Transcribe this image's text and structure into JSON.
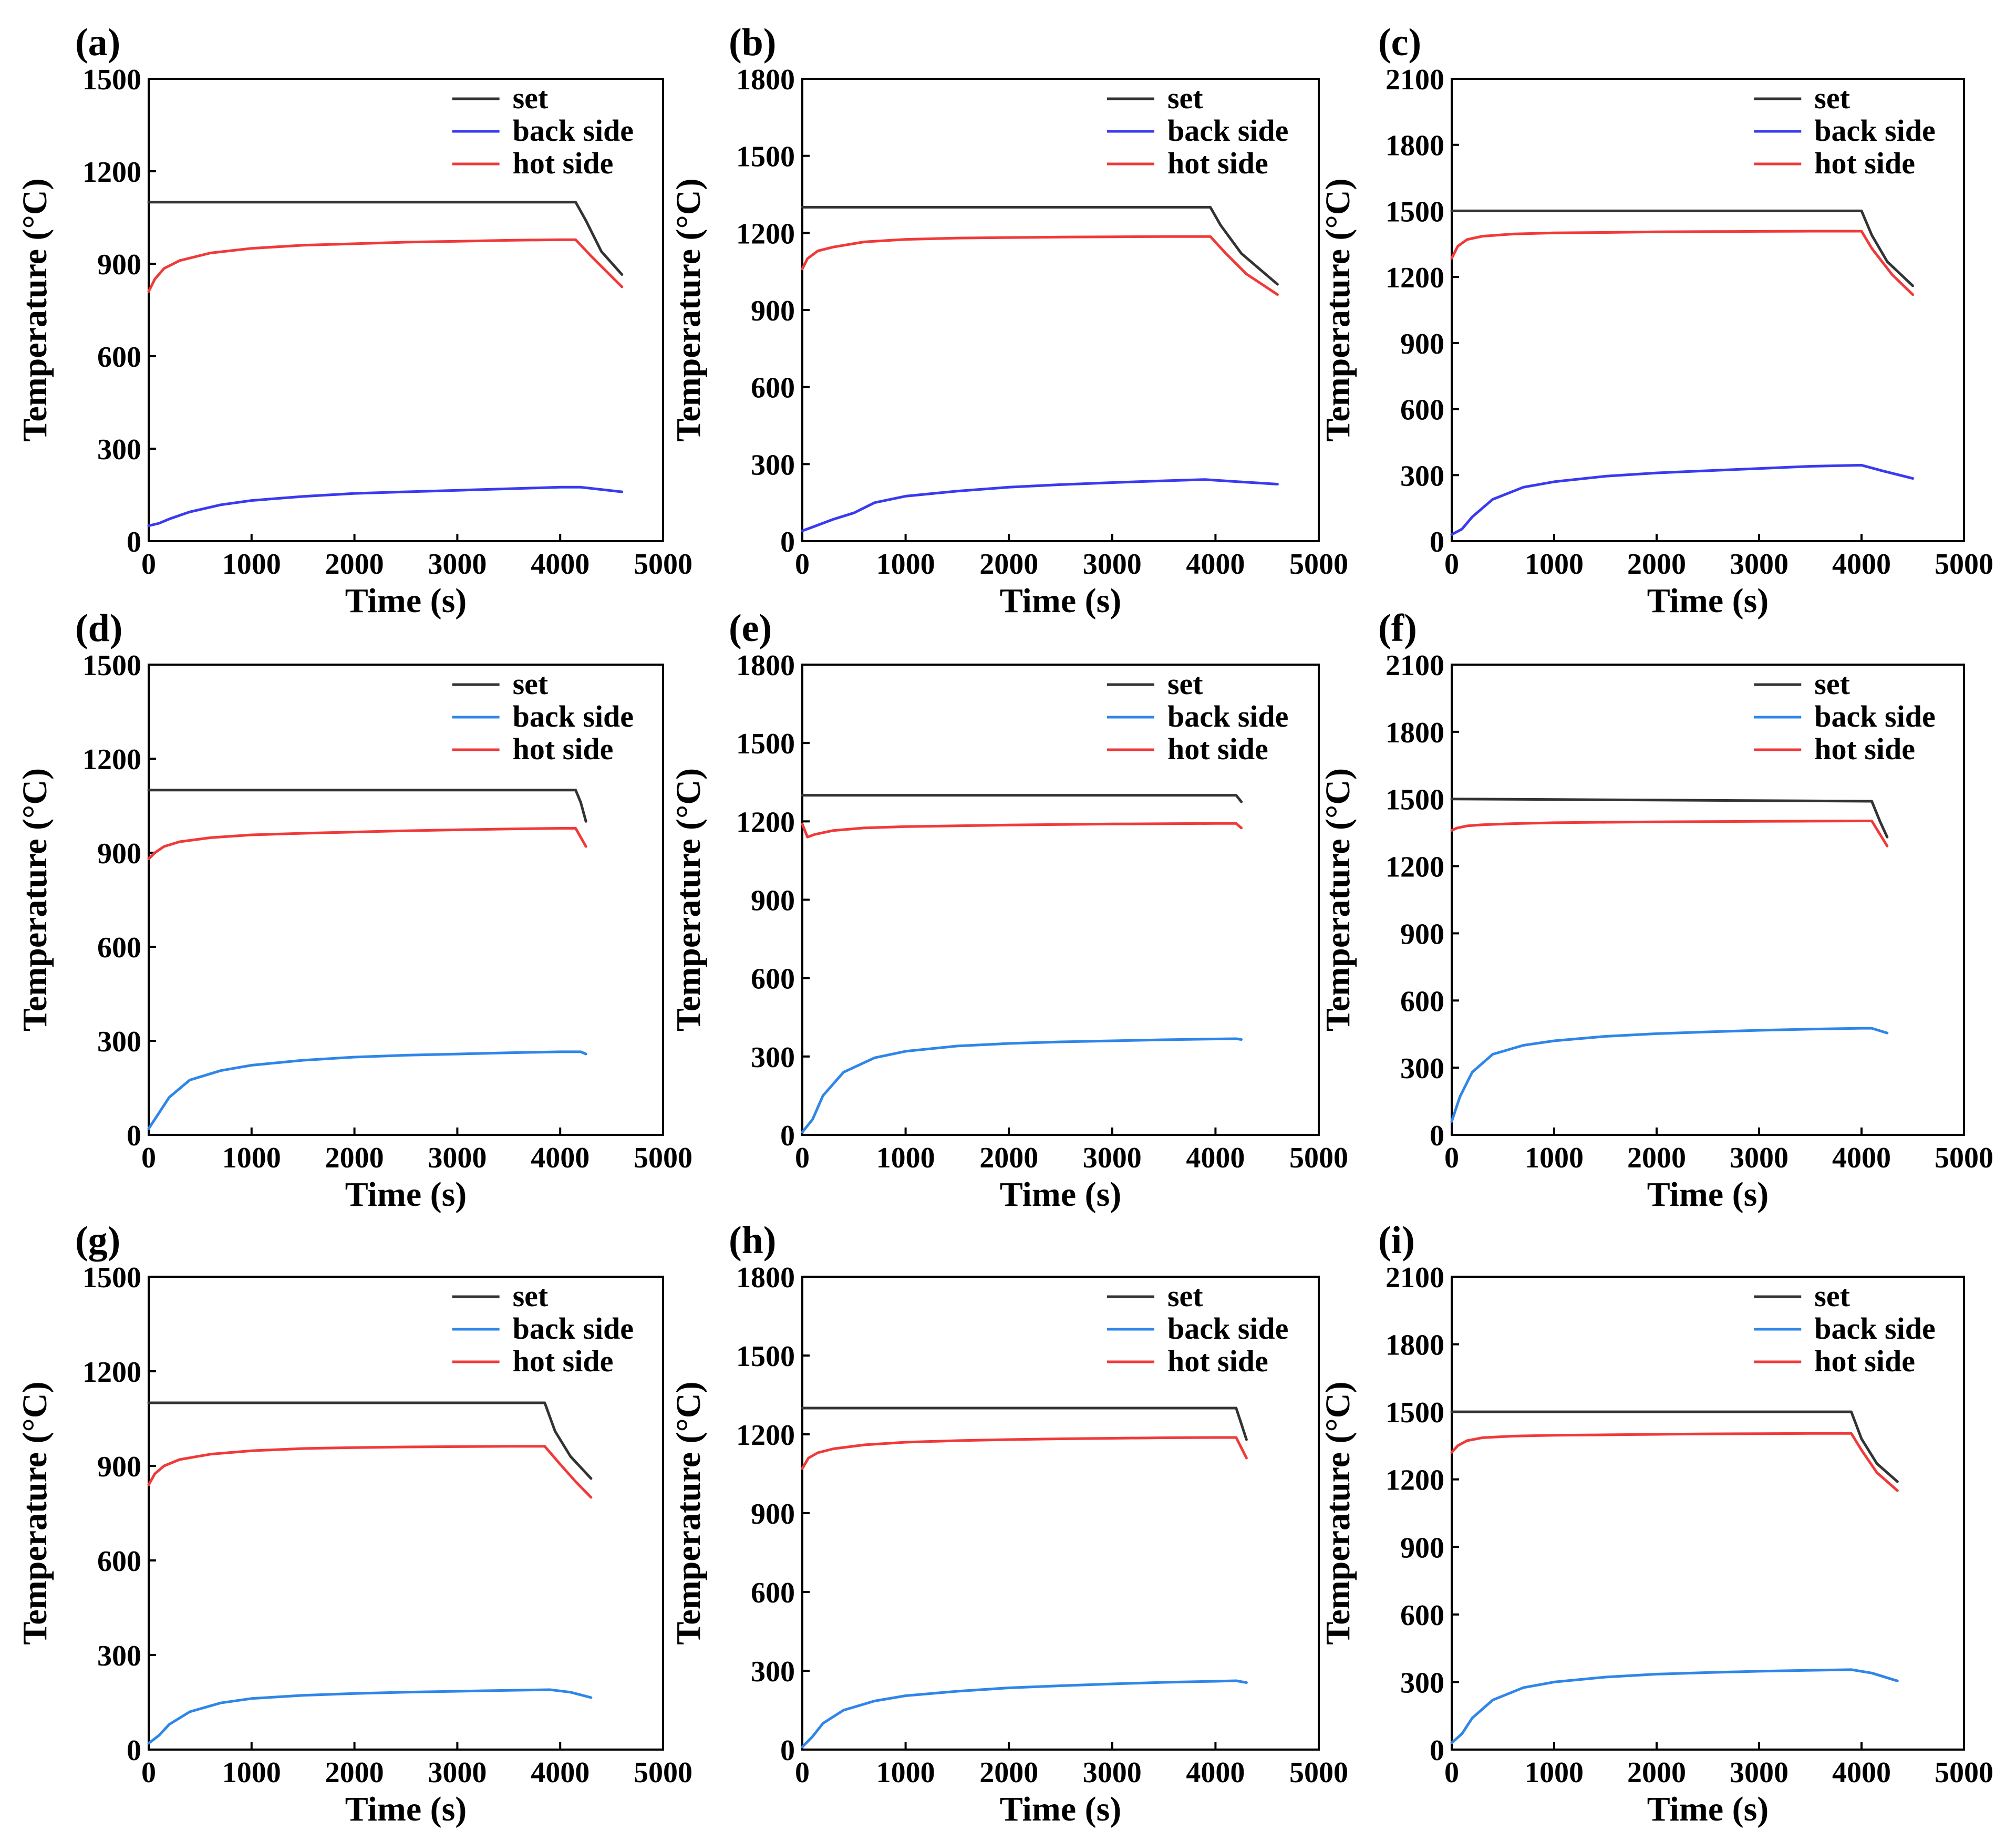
{
  "figure": {
    "xlabel": "Time (s)",
    "ylabel": "Temperature (°C)",
    "legend": [
      "set",
      "back side",
      "hot side"
    ]
  },
  "colors": {
    "set": "#333333",
    "back_purple": "#3a3af0",
    "back_blue": "#2f86e8",
    "hot": "#f03a3a",
    "axis": "#000000"
  },
  "chart_data": [
    {
      "panel": "(a)",
      "type": "line",
      "xlabel": "Time (s)",
      "ylabel": "Temperature (°C)",
      "xlim": [
        0,
        5000
      ],
      "ylim": [
        0,
        1500
      ],
      "xticks": [
        0,
        1000,
        2000,
        3000,
        4000,
        5000
      ],
      "yticks": [
        0,
        300,
        600,
        900,
        1200,
        1500
      ],
      "legend_position": "top-right",
      "back_color_key": "back_purple",
      "series": [
        {
          "name": "set",
          "color_key": "set",
          "x": [
            0,
            4150,
            4250,
            4400,
            4600
          ],
          "y": [
            1100,
            1100,
            1040,
            940,
            865
          ]
        },
        {
          "name": "back side",
          "color_key": "back_purple",
          "x": [
            0,
            100,
            200,
            400,
            700,
            1000,
            1500,
            2000,
            2500,
            3000,
            3500,
            4000,
            4200,
            4600
          ],
          "y": [
            50,
            58,
            72,
            95,
            118,
            132,
            145,
            155,
            160,
            165,
            170,
            175,
            175,
            160
          ]
        },
        {
          "name": "hot side",
          "color_key": "hot",
          "x": [
            0,
            60,
            150,
            300,
            600,
            1000,
            1500,
            2000,
            2500,
            3000,
            3500,
            4000,
            4150,
            4300,
            4600
          ],
          "y": [
            810,
            850,
            885,
            910,
            935,
            950,
            960,
            965,
            970,
            973,
            976,
            978,
            978,
            925,
            825
          ]
        }
      ]
    },
    {
      "panel": "(b)",
      "type": "line",
      "xlabel": "Time (s)",
      "ylabel": "Temperature (°C)",
      "xlim": [
        0,
        5000
      ],
      "ylim": [
        0,
        1800
      ],
      "xticks": [
        0,
        1000,
        2000,
        3000,
        4000,
        5000
      ],
      "yticks": [
        0,
        300,
        600,
        900,
        1200,
        1500,
        1800
      ],
      "legend_position": "top-right",
      "back_color_key": "back_purple",
      "series": [
        {
          "name": "set",
          "color_key": "set",
          "x": [
            0,
            3950,
            4050,
            4250,
            4600
          ],
          "y": [
            1300,
            1300,
            1230,
            1120,
            1000
          ]
        },
        {
          "name": "back side",
          "color_key": "back_purple",
          "x": [
            0,
            100,
            300,
            500,
            700,
            1000,
            1500,
            2000,
            2500,
            3000,
            3500,
            3900,
            4200,
            4600
          ],
          "y": [
            40,
            55,
            85,
            110,
            150,
            175,
            195,
            210,
            220,
            228,
            235,
            240,
            232,
            222
          ]
        },
        {
          "name": "hot side",
          "color_key": "hot",
          "x": [
            0,
            50,
            150,
            300,
            600,
            1000,
            1500,
            2000,
            2500,
            3000,
            3500,
            3950,
            4100,
            4300,
            4600
          ],
          "y": [
            1060,
            1100,
            1130,
            1145,
            1165,
            1175,
            1180,
            1182,
            1184,
            1185,
            1186,
            1186,
            1120,
            1040,
            960
          ]
        }
      ]
    },
    {
      "panel": "(c)",
      "type": "line",
      "xlabel": "Time (s)",
      "ylabel": "Temperature (°C)",
      "xlim": [
        0,
        5000
      ],
      "ylim": [
        0,
        2100
      ],
      "xticks": [
        0,
        1000,
        2000,
        3000,
        4000,
        5000
      ],
      "yticks": [
        0,
        300,
        600,
        900,
        1200,
        1500,
        1800,
        2100
      ],
      "legend_position": "top-right",
      "back_color_key": "back_purple",
      "series": [
        {
          "name": "set",
          "color_key": "set",
          "x": [
            0,
            4000,
            4100,
            4250,
            4500
          ],
          "y": [
            1500,
            1500,
            1390,
            1270,
            1160
          ]
        },
        {
          "name": "back side",
          "color_key": "back_purple",
          "x": [
            0,
            100,
            200,
            400,
            700,
            1000,
            1500,
            2000,
            2500,
            3000,
            3500,
            4000,
            4200,
            4500
          ],
          "y": [
            30,
            55,
            110,
            190,
            245,
            270,
            295,
            310,
            320,
            330,
            340,
            345,
            320,
            285
          ]
        },
        {
          "name": "hot side",
          "color_key": "hot",
          "x": [
            0,
            60,
            150,
            300,
            600,
            1000,
            1500,
            2000,
            2500,
            3000,
            3500,
            4000,
            4100,
            4300,
            4500
          ],
          "y": [
            1285,
            1340,
            1370,
            1385,
            1395,
            1400,
            1402,
            1405,
            1406,
            1407,
            1408,
            1408,
            1330,
            1210,
            1120
          ]
        }
      ]
    },
    {
      "panel": "(d)",
      "type": "line",
      "xlabel": "Time (s)",
      "ylabel": "Temperature (°C)",
      "xlim": [
        0,
        5000
      ],
      "ylim": [
        0,
        1500
      ],
      "xticks": [
        0,
        1000,
        2000,
        3000,
        4000,
        5000
      ],
      "yticks": [
        0,
        300,
        600,
        900,
        1200,
        1500
      ],
      "legend_position": "top-right",
      "back_color_key": "back_blue",
      "series": [
        {
          "name": "set",
          "color_key": "set",
          "x": [
            0,
            4150,
            4200,
            4250
          ],
          "y": [
            1100,
            1100,
            1060,
            1000
          ]
        },
        {
          "name": "back side",
          "color_key": "back_blue",
          "x": [
            0,
            80,
            200,
            400,
            700,
            1000,
            1500,
            2000,
            2500,
            3000,
            3500,
            4000,
            4200,
            4250
          ],
          "y": [
            20,
            60,
            120,
            175,
            205,
            222,
            238,
            248,
            254,
            258,
            262,
            265,
            265,
            258
          ]
        },
        {
          "name": "hot side",
          "color_key": "hot",
          "x": [
            0,
            60,
            150,
            300,
            600,
            1000,
            1500,
            2000,
            2500,
            3000,
            3500,
            4000,
            4150,
            4250
          ],
          "y": [
            880,
            900,
            920,
            935,
            948,
            957,
            962,
            966,
            970,
            973,
            976,
            978,
            978,
            920
          ]
        }
      ]
    },
    {
      "panel": "(e)",
      "type": "line",
      "xlabel": "Time (s)",
      "ylabel": "Temperature (°C)",
      "xlim": [
        0,
        5000
      ],
      "ylim": [
        0,
        1800
      ],
      "xticks": [
        0,
        1000,
        2000,
        3000,
        4000,
        5000
      ],
      "yticks": [
        0,
        300,
        600,
        900,
        1200,
        1500,
        1800
      ],
      "legend_position": "top-right",
      "back_color_key": "back_blue",
      "series": [
        {
          "name": "set",
          "color_key": "set",
          "x": [
            0,
            4200,
            4250
          ],
          "y": [
            1300,
            1300,
            1275
          ]
        },
        {
          "name": "back side",
          "color_key": "back_blue",
          "x": [
            0,
            100,
            200,
            400,
            700,
            1000,
            1500,
            2000,
            2500,
            3000,
            3500,
            4000,
            4200,
            4250
          ],
          "y": [
            10,
            60,
            150,
            240,
            295,
            320,
            340,
            350,
            356,
            360,
            364,
            367,
            368,
            365
          ]
        },
        {
          "name": "hot side",
          "color_key": "hot",
          "x": [
            0,
            50,
            120,
            300,
            600,
            1000,
            1500,
            2000,
            2500,
            3000,
            3500,
            4000,
            4200,
            4250
          ],
          "y": [
            1190,
            1140,
            1150,
            1165,
            1175,
            1180,
            1183,
            1186,
            1188,
            1190,
            1191,
            1192,
            1192,
            1175
          ]
        }
      ]
    },
    {
      "panel": "(f)",
      "type": "line",
      "xlabel": "Time (s)",
      "ylabel": "Temperature (°C)",
      "xlim": [
        0,
        5000
      ],
      "ylim": [
        0,
        2100
      ],
      "xticks": [
        0,
        1000,
        2000,
        3000,
        4000,
        5000
      ],
      "yticks": [
        0,
        300,
        600,
        900,
        1200,
        1500,
        1800,
        2100
      ],
      "legend_position": "top-right",
      "back_color_key": "back_blue",
      "series": [
        {
          "name": "set",
          "color_key": "set",
          "x": [
            0,
            4100,
            4180,
            4250
          ],
          "y": [
            1500,
            1490,
            1400,
            1330
          ]
        },
        {
          "name": "back side",
          "color_key": "back_blue",
          "x": [
            0,
            80,
            200,
            400,
            700,
            1000,
            1500,
            2000,
            2500,
            3000,
            3500,
            4000,
            4100,
            4250
          ],
          "y": [
            60,
            170,
            280,
            360,
            400,
            420,
            440,
            452,
            460,
            467,
            472,
            476,
            476,
            455
          ]
        },
        {
          "name": "hot side",
          "color_key": "hot",
          "x": [
            0,
            50,
            150,
            300,
            600,
            1000,
            1500,
            2000,
            2500,
            3000,
            3500,
            4000,
            4100,
            4250
          ],
          "y": [
            1360,
            1370,
            1380,
            1385,
            1390,
            1394,
            1396,
            1398,
            1399,
            1400,
            1401,
            1402,
            1402,
            1290
          ]
        }
      ]
    },
    {
      "panel": "(g)",
      "type": "line",
      "xlabel": "Time (s)",
      "ylabel": "Temperature (°C)",
      "xlim": [
        0,
        5000
      ],
      "ylim": [
        0,
        1500
      ],
      "xticks": [
        0,
        1000,
        2000,
        3000,
        4000,
        5000
      ],
      "yticks": [
        0,
        300,
        600,
        900,
        1200,
        1500
      ],
      "legend_position": "top-right",
      "back_color_key": "back_blue",
      "series": [
        {
          "name": "set",
          "color_key": "set",
          "x": [
            0,
            3850,
            3950,
            4100,
            4300
          ],
          "y": [
            1100,
            1100,
            1010,
            930,
            860
          ]
        },
        {
          "name": "back side",
          "color_key": "back_blue",
          "x": [
            0,
            100,
            200,
            400,
            700,
            1000,
            1500,
            2000,
            2500,
            3000,
            3500,
            3900,
            4100,
            4300
          ],
          "y": [
            20,
            45,
            80,
            120,
            148,
            162,
            172,
            178,
            182,
            185,
            188,
            190,
            182,
            165
          ]
        },
        {
          "name": "hot side",
          "color_key": "hot",
          "x": [
            0,
            60,
            150,
            300,
            600,
            1000,
            1500,
            2000,
            2500,
            3000,
            3500,
            3850,
            4000,
            4150,
            4300
          ],
          "y": [
            840,
            875,
            900,
            920,
            937,
            948,
            955,
            958,
            960,
            961,
            962,
            962,
            905,
            850,
            800
          ]
        }
      ]
    },
    {
      "panel": "(h)",
      "type": "line",
      "xlabel": "Time (s)",
      "ylabel": "Temperature (°C)",
      "xlim": [
        0,
        5000
      ],
      "ylim": [
        0,
        1800
      ],
      "xticks": [
        0,
        1000,
        2000,
        3000,
        4000,
        5000
      ],
      "yticks": [
        0,
        300,
        600,
        900,
        1200,
        1500,
        1800
      ],
      "legend_position": "top-right",
      "back_color_key": "back_blue",
      "series": [
        {
          "name": "set",
          "color_key": "set",
          "x": [
            0,
            4200,
            4250,
            4300
          ],
          "y": [
            1300,
            1300,
            1240,
            1180
          ]
        },
        {
          "name": "back side",
          "color_key": "back_blue",
          "x": [
            0,
            100,
            200,
            400,
            700,
            1000,
            1500,
            2000,
            2500,
            3000,
            3500,
            4000,
            4200,
            4300
          ],
          "y": [
            10,
            50,
            100,
            150,
            185,
            205,
            222,
            235,
            243,
            250,
            256,
            260,
            262,
            255
          ]
        },
        {
          "name": "hot side",
          "color_key": "hot",
          "x": [
            0,
            60,
            150,
            300,
            600,
            1000,
            1500,
            2000,
            2500,
            3000,
            3500,
            4000,
            4200,
            4300
          ],
          "y": [
            1070,
            1110,
            1130,
            1145,
            1160,
            1170,
            1176,
            1180,
            1183,
            1185,
            1187,
            1188,
            1188,
            1110
          ]
        }
      ]
    },
    {
      "panel": "(i)",
      "type": "line",
      "xlabel": "Time (s)",
      "ylabel": "Temperature (°C)",
      "xlim": [
        0,
        5000
      ],
      "ylim": [
        0,
        2100
      ],
      "xticks": [
        0,
        1000,
        2000,
        3000,
        4000,
        5000
      ],
      "yticks": [
        0,
        300,
        600,
        900,
        1200,
        1500,
        1800,
        2100
      ],
      "legend_position": "top-right",
      "back_color_key": "back_blue",
      "series": [
        {
          "name": "set",
          "color_key": "set",
          "x": [
            0,
            3900,
            4000,
            4150,
            4350
          ],
          "y": [
            1500,
            1500,
            1380,
            1270,
            1190
          ]
        },
        {
          "name": "back side",
          "color_key": "back_blue",
          "x": [
            0,
            100,
            200,
            400,
            700,
            1000,
            1500,
            2000,
            2500,
            3000,
            3500,
            3900,
            4100,
            4350
          ],
          "y": [
            30,
            70,
            140,
            220,
            275,
            300,
            322,
            335,
            342,
            348,
            352,
            355,
            340,
            305
          ]
        },
        {
          "name": "hot side",
          "color_key": "hot",
          "x": [
            0,
            60,
            150,
            300,
            600,
            1000,
            1500,
            2000,
            2500,
            3000,
            3500,
            3900,
            4000,
            4150,
            4350
          ],
          "y": [
            1320,
            1350,
            1372,
            1385,
            1392,
            1396,
            1398,
            1400,
            1402,
            1403,
            1404,
            1404,
            1330,
            1230,
            1150
          ]
        }
      ]
    }
  ]
}
